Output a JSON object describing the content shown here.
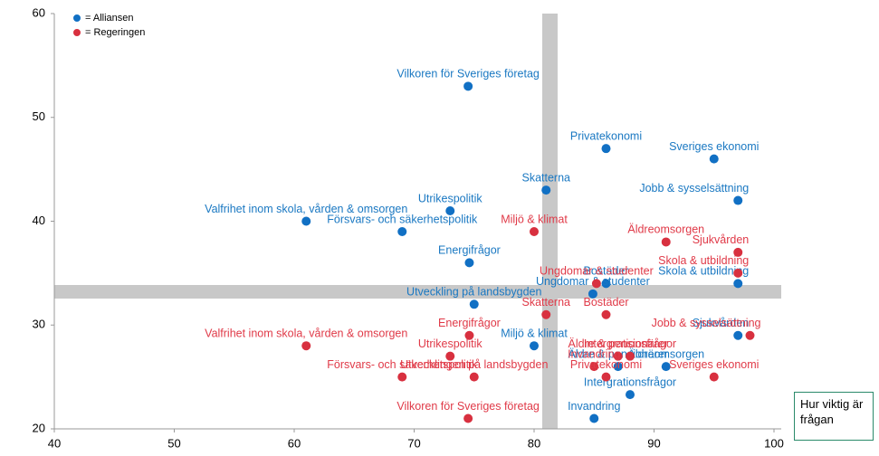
{
  "chart_data": {
    "type": "scatter",
    "annotation": "Hur viktig är frågan",
    "xlim": [
      40,
      100
    ],
    "xticks": [
      40,
      50,
      60,
      70,
      80,
      90,
      100
    ],
    "ylim": [
      20,
      60
    ],
    "yticks": [
      20,
      30,
      40,
      50,
      60
    ],
    "legend": "upper left",
    "series": [
      {
        "name": "= Alliansen",
        "color": "#1170c4",
        "label_color": "#1a78c2",
        "labels": [
          "Vilkoren för Sveriges företag",
          "Privatekonomi",
          "Sveriges ekonomi",
          "Skatterna",
          "Jobb & sysselsättning",
          "Utrikespolitik",
          "Valfrihet inom skola, vården & omsorgen",
          "Försvars- och säkerhetspolitik",
          "Energifrågor",
          "Bostäder",
          "Skola & utbildning",
          "Ungdomar & studenter",
          "Utveckling på landsbygden",
          "Sjukvården",
          "Miljö & klimat",
          "Äldre & pensionärer",
          "Äldreomsorgen",
          "Intergrationsfrågor",
          "Invandring"
        ],
        "x": [
          74.5,
          86,
          95,
          81,
          97,
          73,
          61,
          69,
          74.6,
          86,
          97,
          84.9,
          75,
          97,
          80,
          87,
          91,
          88,
          85
        ],
        "values": [
          53,
          47,
          46,
          43,
          42,
          41,
          40,
          39,
          36,
          34,
          34,
          33,
          32,
          29,
          28,
          26,
          26,
          23.3,
          21
        ]
      },
      {
        "name": "= Regeringen",
        "color": "#d8303f",
        "label_color": "#e03a48",
        "labels": [
          "Miljö & klimat",
          "Äldreomsorgen",
          "Sjukvården",
          "Skola & utbildning",
          "Ungdomar & studenter",
          "Skatterna",
          "Bostäder",
          "Valfrihet inom skola, vården & omsorgen",
          "Energifrågor",
          "Jobb & sysselsättning",
          "Utrikespolitik",
          "Intergrationsfrågor",
          "Äldre & pensionärer",
          "Invandring",
          "Privatekonomi",
          "Sveriges ekonomi",
          "Försvars- och säkerhetspolitik",
          "Utvecklingen på landsbygden",
          "Vilkoren för Sveriges företag"
        ],
        "x": [
          80,
          91,
          97,
          97,
          85.2,
          81,
          86,
          61,
          74.6,
          98,
          73,
          88,
          87,
          85,
          86,
          95,
          69,
          75,
          74.5
        ],
        "values": [
          39,
          38,
          37,
          35,
          34,
          31,
          31,
          28,
          29,
          29,
          27,
          27,
          27,
          26,
          25,
          25,
          25,
          25,
          21
        ]
      }
    ]
  }
}
